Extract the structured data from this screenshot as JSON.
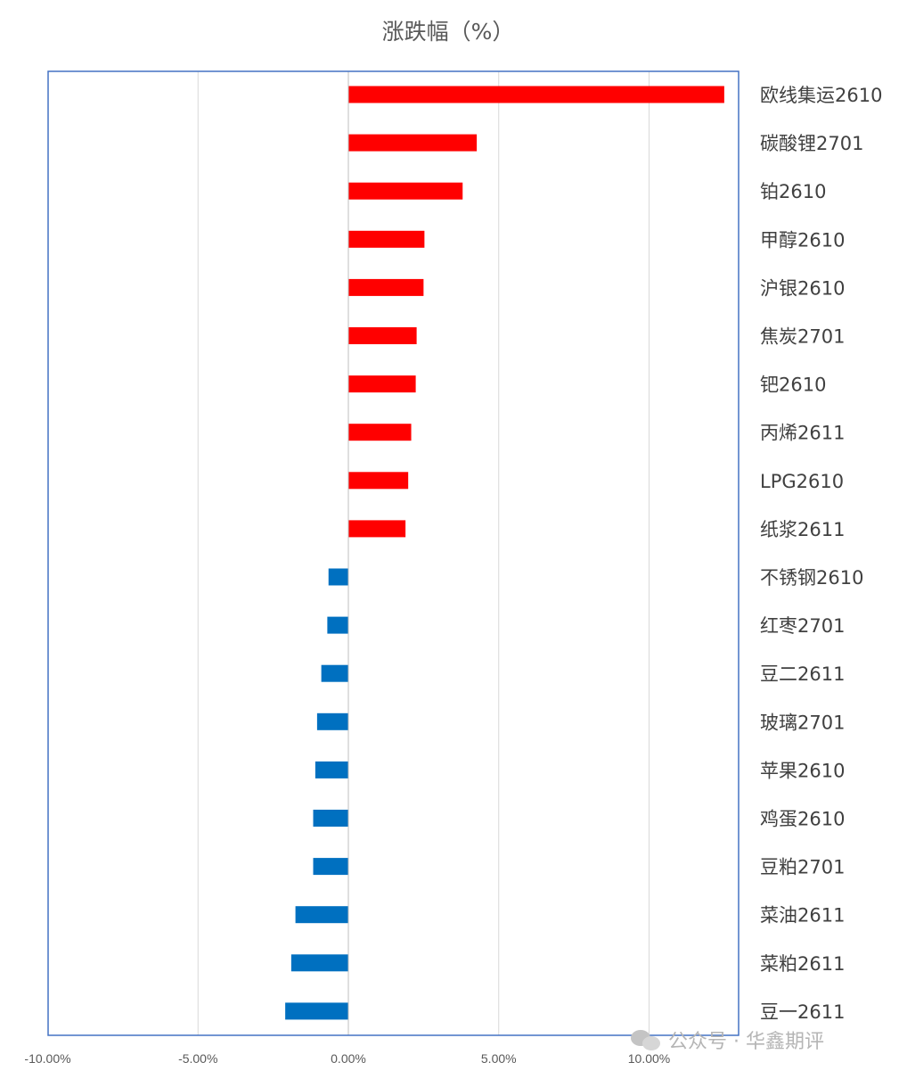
{
  "chart_data": {
    "type": "bar",
    "orientation": "horizontal",
    "title": "涨跌幅（%）",
    "categories": [
      "欧线集运2610",
      "碳酸锂2701",
      "铂2610",
      "甲醇2610",
      "沪银2610",
      "焦炭2701",
      "钯2610",
      "丙烯2611",
      "LPG2610",
      "纸浆2611",
      "不锈钢2610",
      "红枣2701",
      "豆二2611",
      "玻璃2701",
      "苹果2610",
      "鸡蛋2610",
      "豆粕2701",
      "菜油2611",
      "菜粕2611",
      "豆一2611"
    ],
    "values": [
      12.5,
      4.27,
      3.8,
      2.53,
      2.5,
      2.27,
      2.24,
      2.09,
      1.99,
      1.9,
      -0.66,
      -0.7,
      -0.9,
      -1.04,
      -1.1,
      -1.17,
      -1.17,
      -1.76,
      -1.9,
      -2.1
    ],
    "xlim": [
      -10,
      13
    ],
    "xticks": [
      "-10.00%",
      "-5.00%",
      "0.00%",
      "5.00%",
      "10.00%"
    ],
    "xtick_values": [
      -10,
      -5,
      0,
      5,
      10
    ],
    "grid": true,
    "colors": {
      "positive": "#ff0000",
      "negative": "#0070c0",
      "frame": "#4472c4",
      "grid": "#d9d9d9"
    }
  },
  "watermark": {
    "text": "公众号 · 华鑫期评",
    "icon": "wechat-icon"
  }
}
